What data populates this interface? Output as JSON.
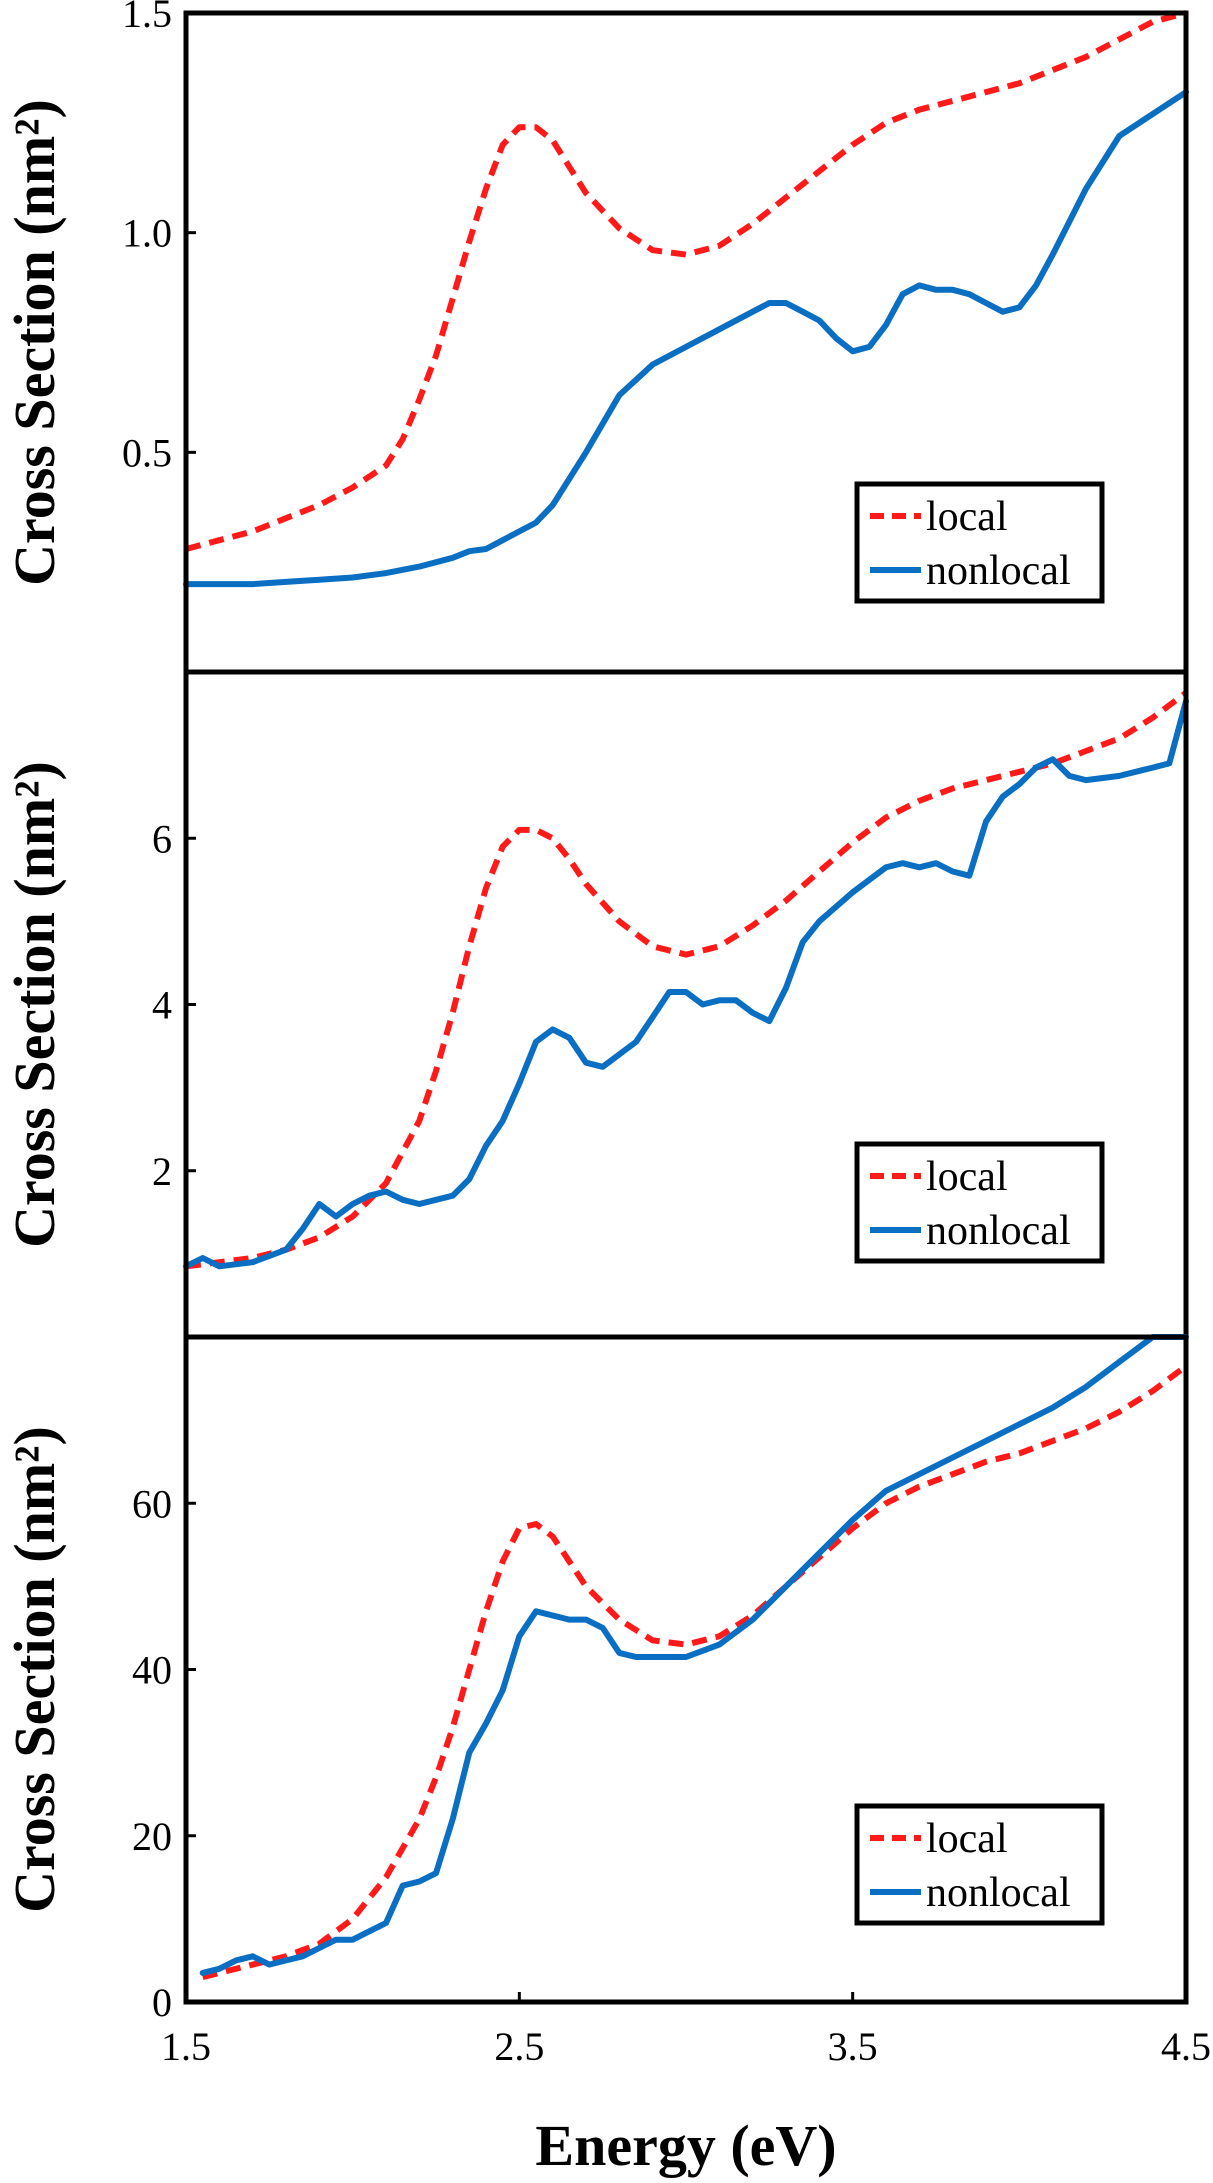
{
  "chart_data": [
    {
      "type": "line",
      "panel": "top",
      "ylabel": "Cross Section (nm²)",
      "xlim": [
        1.5,
        4.5
      ],
      "ylim": [
        0.0,
        1.5
      ],
      "yticks": [
        {
          "value": 0.5,
          "label": "0.5"
        },
        {
          "value": 1.0,
          "label": "1.0"
        },
        {
          "value": 1.5,
          "label": "1.5"
        }
      ],
      "legend": {
        "placement": "lower-right",
        "entries": [
          "local",
          "nonlocal"
        ]
      },
      "series": [
        {
          "name": "local",
          "style": "dashed",
          "color": "#ff1a1a",
          "x": [
            1.5,
            1.6,
            1.7,
            1.8,
            1.9,
            2.0,
            2.1,
            2.15,
            2.2,
            2.25,
            2.3,
            2.35,
            2.4,
            2.45,
            2.5,
            2.55,
            2.6,
            2.65,
            2.7,
            2.8,
            2.9,
            3.0,
            3.1,
            3.2,
            3.3,
            3.4,
            3.5,
            3.6,
            3.7,
            3.8,
            3.9,
            4.0,
            4.1,
            4.2,
            4.3,
            4.4,
            4.5
          ],
          "y": [
            0.28,
            0.3,
            0.32,
            0.35,
            0.38,
            0.42,
            0.47,
            0.53,
            0.62,
            0.72,
            0.85,
            0.98,
            1.1,
            1.2,
            1.24,
            1.24,
            1.21,
            1.15,
            1.09,
            1.01,
            0.96,
            0.95,
            0.97,
            1.02,
            1.08,
            1.14,
            1.2,
            1.25,
            1.28,
            1.3,
            1.32,
            1.34,
            1.37,
            1.4,
            1.44,
            1.48,
            1.5
          ]
        },
        {
          "name": "nonlocal",
          "style": "solid",
          "color": "#0a6fc2",
          "x": [
            1.5,
            1.6,
            1.7,
            1.8,
            1.9,
            2.0,
            2.1,
            2.2,
            2.3,
            2.35,
            2.4,
            2.45,
            2.5,
            2.55,
            2.6,
            2.7,
            2.8,
            2.9,
            3.0,
            3.1,
            3.2,
            3.25,
            3.3,
            3.35,
            3.4,
            3.45,
            3.5,
            3.55,
            3.6,
            3.65,
            3.7,
            3.75,
            3.8,
            3.85,
            3.9,
            3.95,
            4.0,
            4.05,
            4.1,
            4.2,
            4.3,
            4.4,
            4.5
          ],
          "y": [
            0.2,
            0.2,
            0.2,
            0.205,
            0.21,
            0.215,
            0.225,
            0.24,
            0.26,
            0.275,
            0.28,
            0.3,
            0.32,
            0.34,
            0.38,
            0.5,
            0.63,
            0.7,
            0.74,
            0.78,
            0.82,
            0.84,
            0.84,
            0.82,
            0.8,
            0.76,
            0.73,
            0.74,
            0.79,
            0.86,
            0.88,
            0.87,
            0.87,
            0.86,
            0.84,
            0.82,
            0.83,
            0.88,
            0.95,
            1.1,
            1.22,
            1.27,
            1.32
          ]
        }
      ]
    },
    {
      "type": "line",
      "panel": "middle",
      "ylabel": "Cross Section (nm²)",
      "xlim": [
        1.5,
        4.5
      ],
      "ylim": [
        0.0,
        8.0
      ],
      "yticks": [
        {
          "value": 2,
          "label": "2"
        },
        {
          "value": 4,
          "label": "4"
        },
        {
          "value": 6,
          "label": "6"
        }
      ],
      "legend": {
        "placement": "lower-right",
        "entries": [
          "local",
          "nonlocal"
        ]
      },
      "series": [
        {
          "name": "local",
          "style": "dashed",
          "color": "#ff1a1a",
          "x": [
            1.5,
            1.6,
            1.7,
            1.8,
            1.9,
            2.0,
            2.1,
            2.2,
            2.25,
            2.3,
            2.35,
            2.4,
            2.45,
            2.5,
            2.55,
            2.6,
            2.65,
            2.7,
            2.8,
            2.9,
            3.0,
            3.1,
            3.2,
            3.3,
            3.4,
            3.5,
            3.6,
            3.7,
            3.8,
            3.9,
            4.0,
            4.1,
            4.2,
            4.3,
            4.4,
            4.5
          ],
          "y": [
            0.85,
            0.9,
            0.95,
            1.05,
            1.2,
            1.45,
            1.85,
            2.6,
            3.2,
            3.9,
            4.7,
            5.4,
            5.9,
            6.1,
            6.1,
            6.0,
            5.75,
            5.45,
            5.0,
            4.7,
            4.6,
            4.7,
            4.95,
            5.25,
            5.6,
            5.95,
            6.25,
            6.45,
            6.6,
            6.7,
            6.8,
            6.9,
            7.05,
            7.2,
            7.45,
            7.75
          ]
        },
        {
          "name": "nonlocal",
          "style": "solid",
          "color": "#0a6fc2",
          "x": [
            1.5,
            1.55,
            1.6,
            1.7,
            1.8,
            1.85,
            1.9,
            1.95,
            2.0,
            2.05,
            2.1,
            2.15,
            2.2,
            2.25,
            2.3,
            2.35,
            2.4,
            2.45,
            2.5,
            2.55,
            2.6,
            2.65,
            2.7,
            2.75,
            2.8,
            2.85,
            2.9,
            2.95,
            3.0,
            3.05,
            3.1,
            3.15,
            3.2,
            3.25,
            3.3,
            3.35,
            3.4,
            3.5,
            3.6,
            3.65,
            3.7,
            3.75,
            3.8,
            3.85,
            3.9,
            3.95,
            4.0,
            4.05,
            4.1,
            4.15,
            4.2,
            4.3,
            4.4,
            4.45,
            4.5
          ],
          "y": [
            0.85,
            0.95,
            0.85,
            0.9,
            1.05,
            1.3,
            1.6,
            1.45,
            1.6,
            1.7,
            1.75,
            1.65,
            1.6,
            1.65,
            1.7,
            1.9,
            2.3,
            2.6,
            3.05,
            3.55,
            3.7,
            3.6,
            3.3,
            3.25,
            3.4,
            3.55,
            3.85,
            4.15,
            4.15,
            4.0,
            4.05,
            4.05,
            3.9,
            3.8,
            4.2,
            4.75,
            5.0,
            5.35,
            5.65,
            5.7,
            5.65,
            5.7,
            5.6,
            5.55,
            6.2,
            6.5,
            6.65,
            6.85,
            6.95,
            6.75,
            6.7,
            6.75,
            6.85,
            6.9,
            7.65
          ]
        }
      ]
    },
    {
      "type": "line",
      "panel": "bottom",
      "ylabel": "Cross Section (nm²)",
      "xlabel": "Energy (eV)",
      "xlim": [
        1.5,
        4.5
      ],
      "ylim": [
        0,
        80
      ],
      "xticks": [
        {
          "value": 1.5,
          "label": "1.5"
        },
        {
          "value": 2.5,
          "label": "2.5"
        },
        {
          "value": 3.5,
          "label": "3.5"
        },
        {
          "value": 4.5,
          "label": "4.5"
        }
      ],
      "yticks": [
        {
          "value": 0,
          "label": "0"
        },
        {
          "value": 20,
          "label": "20"
        },
        {
          "value": 40,
          "label": "40"
        },
        {
          "value": 60,
          "label": "60"
        }
      ],
      "legend": {
        "placement": "lower-right",
        "entries": [
          "local",
          "nonlocal"
        ]
      },
      "series": [
        {
          "name": "local",
          "style": "dashed",
          "color": "#ff1a1a",
          "x": [
            1.55,
            1.6,
            1.7,
            1.8,
            1.9,
            2.0,
            2.1,
            2.2,
            2.25,
            2.3,
            2.35,
            2.4,
            2.45,
            2.5,
            2.55,
            2.6,
            2.65,
            2.7,
            2.8,
            2.9,
            3.0,
            3.1,
            3.2,
            3.3,
            3.4,
            3.5,
            3.6,
            3.7,
            3.8,
            3.9,
            4.0,
            4.1,
            4.2,
            4.3,
            4.4,
            4.5
          ],
          "y": [
            3,
            3.5,
            4.5,
            5.5,
            7,
            10,
            15,
            22,
            27,
            33,
            40,
            47,
            53,
            57,
            57.5,
            56,
            53,
            50,
            46,
            43.5,
            43,
            44,
            46.5,
            50,
            53.5,
            57,
            60,
            62,
            63.5,
            65,
            66,
            67.5,
            69,
            71,
            73.5,
            76.5
          ]
        },
        {
          "name": "nonlocal",
          "style": "solid",
          "color": "#0a6fc2",
          "x": [
            1.55,
            1.6,
            1.65,
            1.7,
            1.75,
            1.8,
            1.85,
            1.9,
            1.95,
            2.0,
            2.05,
            2.1,
            2.15,
            2.2,
            2.25,
            2.3,
            2.35,
            2.4,
            2.45,
            2.5,
            2.55,
            2.6,
            2.65,
            2.7,
            2.75,
            2.8,
            2.85,
            2.9,
            3.0,
            3.1,
            3.2,
            3.3,
            3.4,
            3.5,
            3.6,
            3.7,
            3.8,
            3.9,
            4.0,
            4.1,
            4.2,
            4.3,
            4.4,
            4.5
          ],
          "y": [
            3.5,
            4,
            5,
            5.5,
            4.5,
            5,
            5.5,
            6.5,
            7.5,
            7.5,
            8.5,
            9.5,
            14,
            14.5,
            15.5,
            22,
            30,
            33.5,
            37.5,
            44,
            47,
            46.5,
            46,
            46,
            45,
            42,
            41.5,
            41.5,
            41.5,
            43,
            46,
            50,
            54,
            58,
            61.5,
            63.5,
            65.5,
            67.5,
            69.5,
            71.5,
            74,
            77,
            80,
            80
          ]
        }
      ]
    }
  ]
}
